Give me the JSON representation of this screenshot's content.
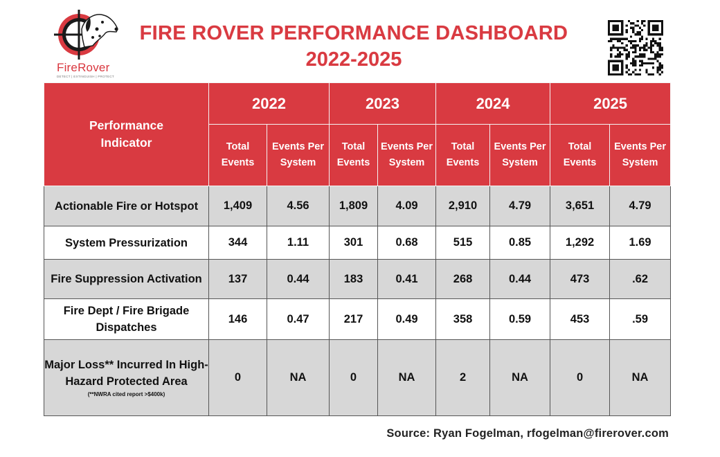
{
  "header": {
    "logo": {
      "name": "FireRover",
      "tagline": "DETECT | EXTINGUISH | PROTECT"
    },
    "title_line1": "FIRE ROVER PERFORMANCE DASHBOARD",
    "title_line2": "2022-2025"
  },
  "colors": {
    "accent_red": "#d93a41",
    "row_gray": "#d7d7d7"
  },
  "table": {
    "indicator_header": "Performance Indicator",
    "years": [
      "2022",
      "2023",
      "2024",
      "2025"
    ],
    "sub_total": "Total Events",
    "sub_per": "Events Per System",
    "rows": [
      {
        "label": "Actionable Fire or Hotspot",
        "values": [
          "1,409",
          "4.56",
          "1,809",
          "4.09",
          "2,910",
          "4.79",
          "3,651",
          "4.79"
        ]
      },
      {
        "label": "System Pressurization",
        "values": [
          "344",
          "1.11",
          "301",
          "0.68",
          "515",
          "0.85",
          "1,292",
          "1.69"
        ]
      },
      {
        "label": "Fire Suppression Activation",
        "values": [
          "137",
          "0.44",
          "183",
          "0.41",
          "268",
          "0.44",
          "473",
          ".62"
        ]
      },
      {
        "label": "Fire Dept / Fire Brigade Dispatches",
        "values": [
          "146",
          "0.47",
          "217",
          "0.49",
          "358",
          "0.59",
          "453",
          ".59"
        ]
      },
      {
        "label": "Major Loss** Incurred In High-Hazard Protected Area",
        "note": "(**NWRA cited report >$400k)",
        "values": [
          "0",
          "NA",
          "0",
          "NA",
          "2",
          "NA",
          "0",
          "NA"
        ]
      }
    ]
  },
  "footer": {
    "source": "Source: Ryan Fogelman, rfogelman@firerover.com"
  }
}
